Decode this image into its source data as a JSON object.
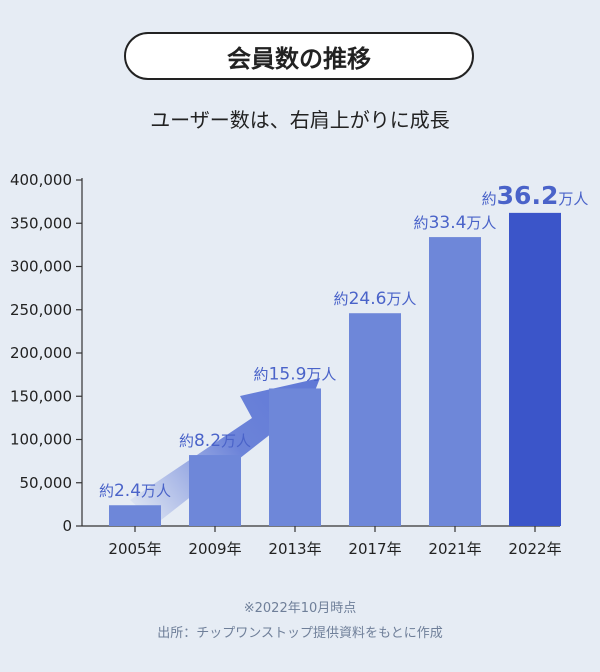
{
  "header": {
    "title": "会員数の推移",
    "subtitle": "ユーザー数は、右肩上がりに成長"
  },
  "chart_data": {
    "type": "bar",
    "categories": [
      "2005年",
      "2009年",
      "2013年",
      "2017年",
      "2021年",
      "2022年"
    ],
    "values": [
      24000,
      82000,
      159000,
      246000,
      334000,
      362000
    ],
    "data_labels": [
      {
        "prefix": "約",
        "number": "2.4",
        "unit": "万人"
      },
      {
        "prefix": "約",
        "number": "8.2",
        "unit": "万人"
      },
      {
        "prefix": "約",
        "number": "15.9",
        "unit": "万人"
      },
      {
        "prefix": "約",
        "number": "24.6",
        "unit": "万人"
      },
      {
        "prefix": "約",
        "number": "33.4",
        "unit": "万人"
      },
      {
        "prefix": "約",
        "number": "36.2",
        "unit": "万人"
      }
    ],
    "highlight_index": 5,
    "ylim": [
      0,
      400000
    ],
    "yticks": [
      0,
      50000,
      100000,
      150000,
      200000,
      250000,
      300000,
      350000,
      400000
    ],
    "ytick_labels": [
      "0",
      "50,000",
      "100,000",
      "150,000",
      "200,000",
      "250,000",
      "300,000",
      "350,000",
      "400,000"
    ],
    "grid": false,
    "colors": {
      "bar": "#6e87d9",
      "highlight_bar": "#3b55c9",
      "label": "#4a63c9",
      "axis": "#333333",
      "arrow": "#5f78d6"
    }
  },
  "footnotes": {
    "date_note": "※2022年10月時点",
    "source": "出所：チップワンストップ提供資料をもとに作成"
  }
}
